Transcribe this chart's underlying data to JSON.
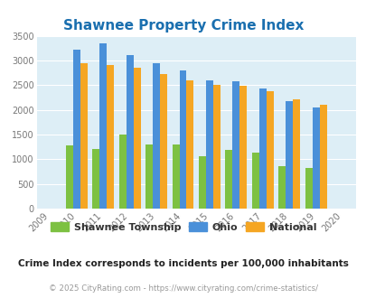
{
  "title": "Shawnee Property Crime Index",
  "years": [
    2009,
    2010,
    2011,
    2012,
    2013,
    2014,
    2015,
    2016,
    2017,
    2018,
    2019,
    2020
  ],
  "bar_years": [
    2010,
    2011,
    2012,
    2013,
    2014,
    2015,
    2016,
    2017,
    2018,
    2019
  ],
  "shawnee": [
    1280,
    1210,
    1500,
    1300,
    1300,
    1060,
    1190,
    1130,
    860,
    830
  ],
  "ohio": [
    3220,
    3350,
    3100,
    2940,
    2790,
    2600,
    2580,
    2430,
    2180,
    2050
  ],
  "national": [
    2950,
    2900,
    2860,
    2720,
    2600,
    2500,
    2480,
    2370,
    2210,
    2110
  ],
  "shawnee_color": "#7dc142",
  "ohio_color": "#4a90d9",
  "national_color": "#f5a623",
  "bg_color": "#ddeef6",
  "title_color": "#1a6faf",
  "ylim": [
    0,
    3500
  ],
  "yticks": [
    0,
    500,
    1000,
    1500,
    2000,
    2500,
    3000,
    3500
  ],
  "legend_labels": [
    "Shawnee Township",
    "Ohio",
    "National"
  ],
  "footnote1": "Crime Index corresponds to incidents per 100,000 inhabitants",
  "footnote2": "© 2025 CityRating.com - https://www.cityrating.com/crime-statistics/",
  "footnote1_color": "#222222",
  "footnote2_color": "#999999",
  "bar_width": 0.27
}
